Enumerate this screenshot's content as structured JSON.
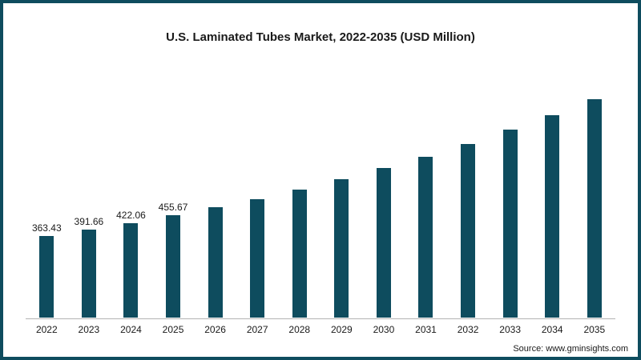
{
  "title": "U.S. Laminated Tubes Market, 2022-2035 (USD Million)",
  "source": "Source: www.gminsights.com",
  "colors": {
    "bar": "#0e4c5e",
    "frame_border": "#0e4c5e",
    "axis": "#b3b3b3"
  },
  "chart_data": {
    "type": "bar",
    "title": "U.S. Laminated Tubes Market, 2022-2035 (USD Million)",
    "xlabel": "",
    "ylabel": "USD Million",
    "ylim": [
      0,
      1000
    ],
    "grid": false,
    "legend_position": "none",
    "categories": [
      "2022",
      "2023",
      "2024",
      "2025",
      "2026",
      "2027",
      "2028",
      "2029",
      "2030",
      "2031",
      "2032",
      "2033",
      "2034",
      "2035"
    ],
    "values": [
      363.43,
      391.66,
      422.06,
      455.67,
      491.5,
      530.4,
      572.4,
      617.7,
      666.6,
      719.4,
      776.4,
      837.9,
      904.3,
      975.9
    ],
    "data_labels": [
      "363.43",
      "391.66",
      "422.06",
      "455.67",
      "",
      "",
      "",
      "",
      "",
      "",
      "",
      "",
      "",
      ""
    ],
    "bar_color": "#0e4c5e"
  }
}
